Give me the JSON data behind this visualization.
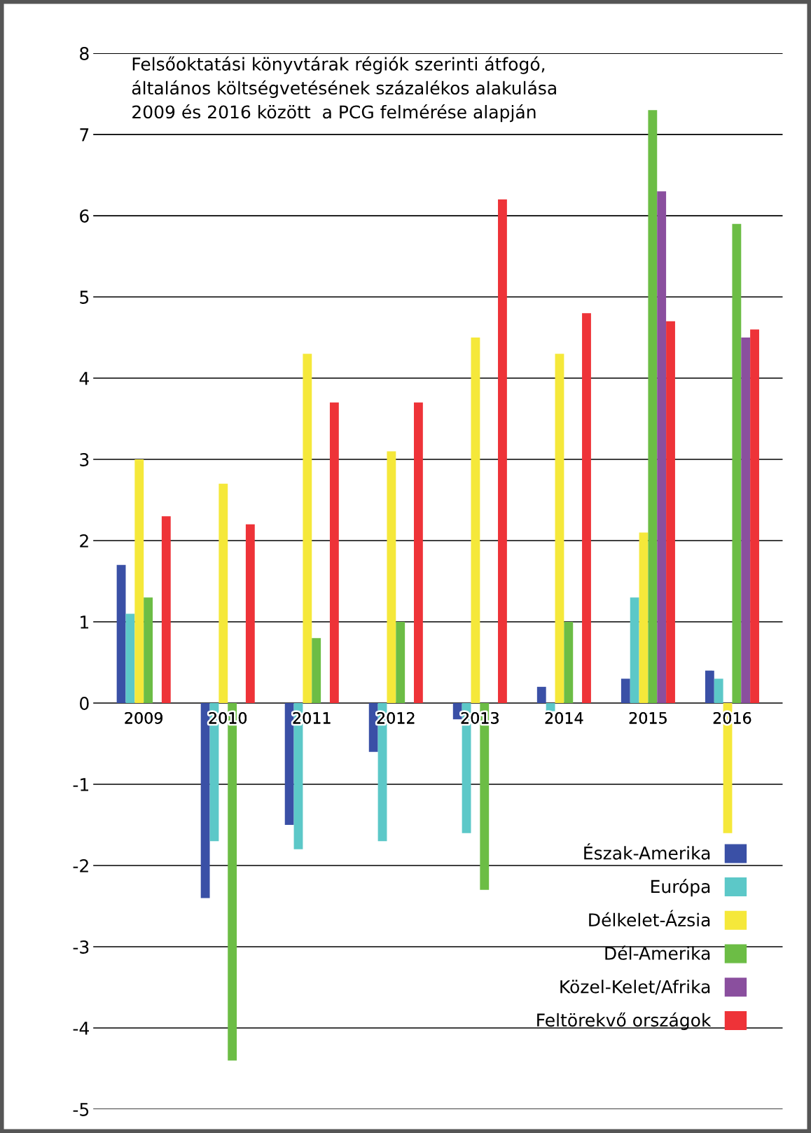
{
  "chart_data": {
    "type": "bar",
    "title": "Felsőoktatási könyvtárak régiók szerinti átfogó,\náltalános költségvetésének százalékos alakulása\n2009 és 2016 között  a PCG felmérése alapján",
    "categories": [
      "2009",
      "2010",
      "2011",
      "2012",
      "2013",
      "2014",
      "2015",
      "2016"
    ],
    "series": [
      {
        "name": "Észak-Amerika",
        "color": "#3a50a6",
        "values": [
          1.7,
          -2.4,
          -1.5,
          -0.6,
          -0.2,
          0.2,
          0.3,
          0.4
        ]
      },
      {
        "name": "Európa",
        "color": "#5cc8c8",
        "values": [
          1.1,
          -1.7,
          -1.8,
          -1.7,
          -1.6,
          -0.1,
          1.3,
          0.3
        ]
      },
      {
        "name": "Délkelet-Ázsia",
        "color": "#f5e83a",
        "values": [
          3.0,
          2.7,
          4.3,
          3.1,
          4.5,
          4.3,
          2.1,
          -1.6
        ]
      },
      {
        "name": "Dél-Amerika",
        "color": "#6cbd45",
        "values": [
          1.3,
          -4.4,
          0.8,
          1.0,
          -2.3,
          1.0,
          7.3,
          5.9
        ]
      },
      {
        "name": "Közel-Kelet/Afrika",
        "color": "#8a4f9e",
        "values": [
          null,
          null,
          null,
          null,
          null,
          null,
          6.3,
          4.5
        ]
      },
      {
        "name": "Feltörekvő országok",
        "color": "#ee3338",
        "values": [
          2.3,
          2.2,
          3.7,
          3.7,
          6.2,
          4.8,
          4.7,
          4.6
        ]
      }
    ],
    "ylim": [
      -5,
      8
    ],
    "yticks": [
      -5,
      -4,
      -3,
      -2,
      -1,
      0,
      1,
      2,
      3,
      4,
      5,
      6,
      7,
      8
    ],
    "grid": "y",
    "legend": "bottom right"
  }
}
